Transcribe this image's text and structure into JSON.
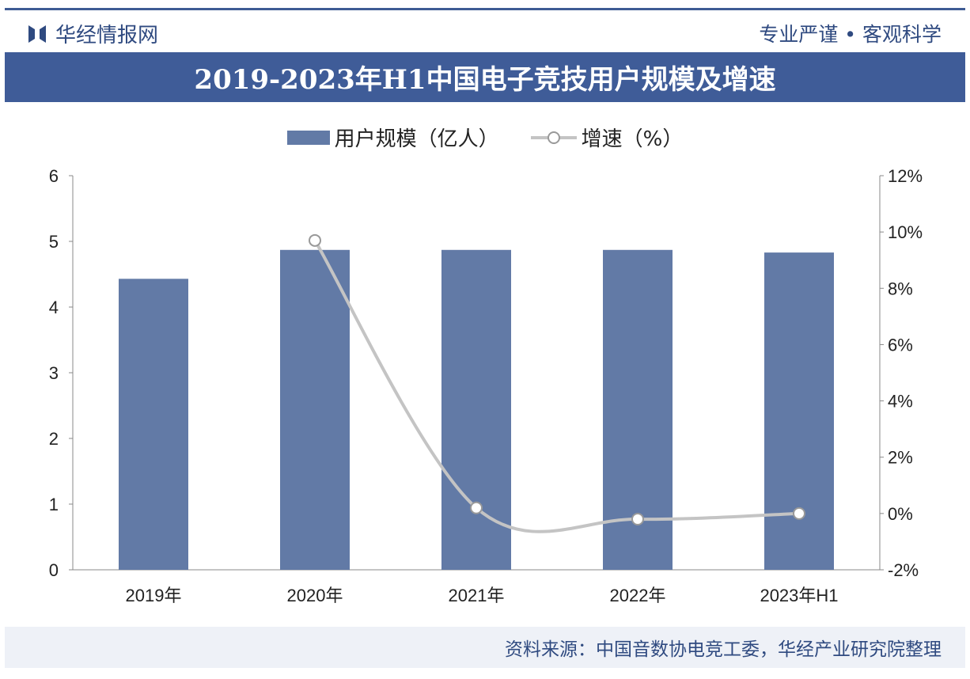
{
  "header": {
    "brand": "华经情报网",
    "slogan": "专业严谨 • 客观科学"
  },
  "chart_data": {
    "type": "bar+line",
    "title": "2019-2023年H1中国电子竞技用户规模及增速",
    "categories": [
      "2019年",
      "2020年",
      "2021年",
      "2022年",
      "2023年H1"
    ],
    "series": [
      {
        "name": "用户规模（亿人）",
        "type": "bar",
        "axis": "left",
        "values": [
          4.43,
          4.87,
          4.87,
          4.87,
          4.83
        ]
      },
      {
        "name": "增速（%）",
        "type": "line",
        "axis": "right",
        "values": [
          null,
          9.7,
          0.2,
          -0.2,
          0.0
        ]
      }
    ],
    "y_left": {
      "ylim": [
        0,
        6
      ],
      "ticks": [
        "0",
        "1",
        "2",
        "3",
        "4",
        "5",
        "6"
      ]
    },
    "y_right": {
      "ylim": [
        -2,
        12
      ],
      "ticks": [
        "-2%",
        "0%",
        "2%",
        "4%",
        "6%",
        "8%",
        "10%",
        "12%"
      ]
    },
    "legend": "top-center",
    "colors": {
      "bar": "#627aa6",
      "line": "#c4c4c4",
      "title_bg": "#3f5c98"
    }
  },
  "footer": {
    "source": "资料来源：中国音数协电竞工委，华经产业研究院整理"
  }
}
